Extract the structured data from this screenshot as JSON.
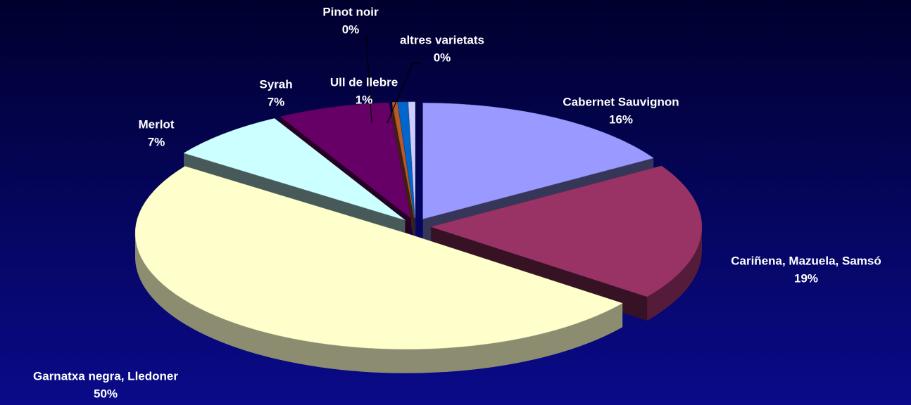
{
  "chart_data": {
    "type": "pie",
    "categories": [
      "Cabernet Sauvignon",
      "Cariñena, Mazuela, Samsó",
      "Garnatxa negra, Lledoner",
      "Merlot",
      "Syrah",
      "Pinot noir",
      "Ull de llebre",
      "altres varietats"
    ],
    "values": [
      16.2,
      19.1,
      49.5,
      7.2,
      6.7,
      0.3,
      0.6,
      0.4
    ],
    "value_labels": [
      "16%",
      "19%",
      "50%",
      "7%",
      "7%",
      "0%",
      "1%",
      "0%"
    ],
    "colors": [
      "#9999ff",
      "#993366",
      "#ffffcc",
      "#ccffff",
      "#660066",
      "#b85a2a",
      "#0066cc",
      "#ccccff"
    ]
  }
}
